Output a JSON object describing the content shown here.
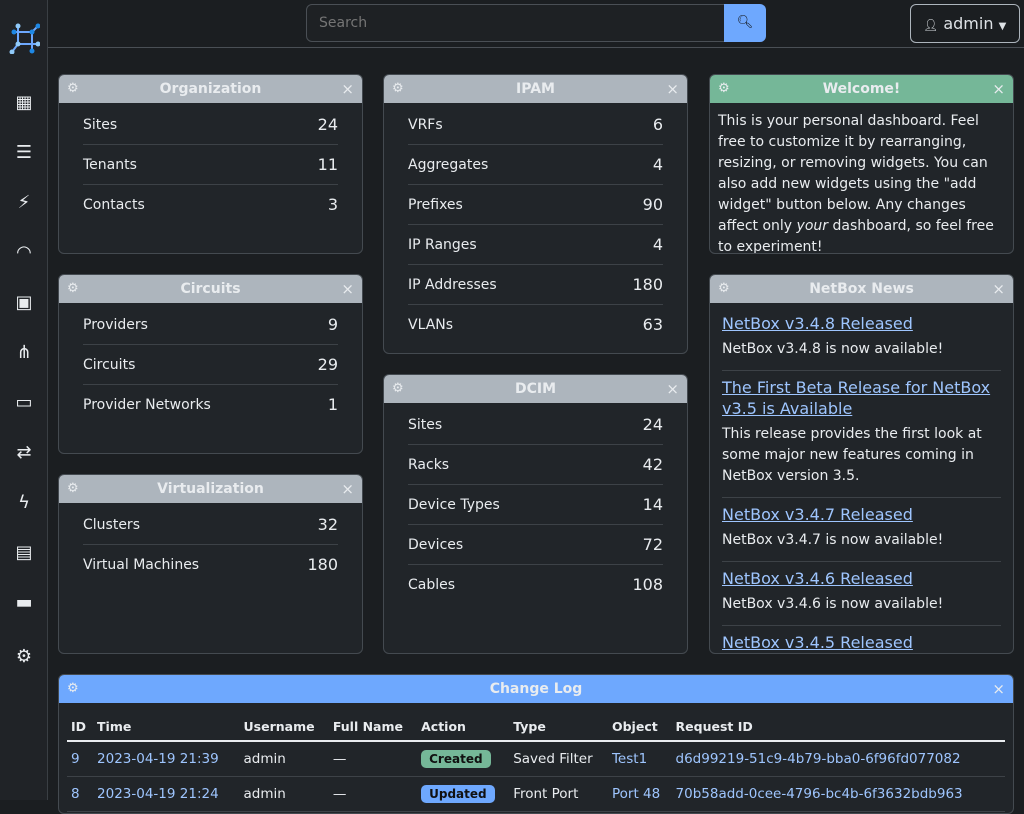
{
  "search": {
    "placeholder": "Search"
  },
  "user": {
    "label": "admin"
  },
  "colors": {
    "accent": "#6ea8fe",
    "header_gray": "#adb5bd",
    "welcome": "#75b798",
    "created": "#75b798",
    "updated": "#6ea8fe"
  },
  "sidebar": {
    "icons": [
      "netbox-logo-icon",
      "organization-icon",
      "devices-icon",
      "connections-icon",
      "wireless-icon",
      "ipam-icon",
      "overlay-icon",
      "virtualization-icon",
      "circuits-icon",
      "power-icon",
      "provisioning-icon",
      "customization-icon",
      "operations-icon"
    ]
  },
  "organization": {
    "title": "Organization",
    "items": [
      {
        "label": "Sites",
        "value": "24"
      },
      {
        "label": "Tenants",
        "value": "11"
      },
      {
        "label": "Contacts",
        "value": "3"
      }
    ]
  },
  "circuits": {
    "title": "Circuits",
    "items": [
      {
        "label": "Providers",
        "value": "9"
      },
      {
        "label": "Circuits",
        "value": "29"
      },
      {
        "label": "Provider Networks",
        "value": "1"
      }
    ]
  },
  "virtualization": {
    "title": "Virtualization",
    "items": [
      {
        "label": "Clusters",
        "value": "32"
      },
      {
        "label": "Virtual Machines",
        "value": "180"
      }
    ]
  },
  "ipam": {
    "title": "IPAM",
    "items": [
      {
        "label": "VRFs",
        "value": "6"
      },
      {
        "label": "Aggregates",
        "value": "4"
      },
      {
        "label": "Prefixes",
        "value": "90"
      },
      {
        "label": "IP Ranges",
        "value": "4"
      },
      {
        "label": "IP Addresses",
        "value": "180"
      },
      {
        "label": "VLANs",
        "value": "63"
      }
    ]
  },
  "dcim": {
    "title": "DCIM",
    "items": [
      {
        "label": "Sites",
        "value": "24"
      },
      {
        "label": "Racks",
        "value": "42"
      },
      {
        "label": "Device Types",
        "value": "14"
      },
      {
        "label": "Devices",
        "value": "72"
      },
      {
        "label": "Cables",
        "value": "108"
      }
    ]
  },
  "welcome": {
    "title": "Welcome!",
    "text_a": "This is your personal dashboard. Feel free to customize it by rearranging, resizing, or removing widgets. You can also add new widgets using the \"add widget\" button below. Any changes affect only ",
    "text_em": "your",
    "text_b": " dashboard, so feel free to experiment!"
  },
  "news": {
    "title": "NetBox News",
    "items": [
      {
        "title": "NetBox v3.4.8 Released",
        "body": "NetBox v3.4.8 is now available!"
      },
      {
        "title": "The First Beta Release for NetBox v3.5 is Available",
        "body": "This release provides the first look at some major new features coming in NetBox version 3.5."
      },
      {
        "title": "NetBox v3.4.7 Released",
        "body": "NetBox v3.4.7 is now available!"
      },
      {
        "title": "NetBox v3.4.6 Released",
        "body": "NetBox v3.4.6 is now available!"
      },
      {
        "title": "NetBox v3.4.5 Released",
        "body": ""
      }
    ]
  },
  "changelog": {
    "title": "Change Log",
    "columns": [
      "ID",
      "Time",
      "Username",
      "Full Name",
      "Action",
      "Type",
      "Object",
      "Request ID"
    ],
    "rows": [
      {
        "id": "9",
        "time": "2023-04-19 21:39",
        "user": "admin",
        "full": "—",
        "action": "Created",
        "type": "Saved Filter",
        "object": "Test1",
        "request": "d6d99219-51c9-4b79-bba0-6f96fd077082"
      },
      {
        "id": "8",
        "time": "2023-04-19 21:24",
        "user": "admin",
        "full": "—",
        "action": "Updated",
        "type": "Front Port",
        "object": "Port 48",
        "request": "70b58add-0cee-4796-bc4b-6f3632bdb963"
      }
    ]
  }
}
